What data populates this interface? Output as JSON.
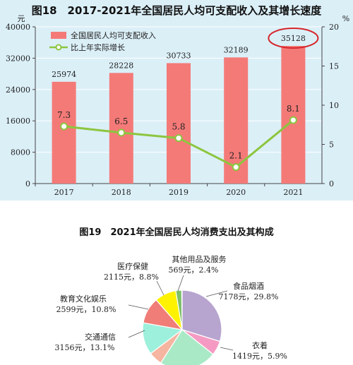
{
  "figures": {
    "fig18_title": "图18　2017-2021年全国居民人均可支配收入及其增长速度",
    "fig19_title": "图19　2021年全国居民人均消费支出及其构成"
  },
  "colors": {
    "panel_bg": "#dbeff7",
    "bar": "#f47a78",
    "line": "#8cc63f",
    "highlight": "#d6262b",
    "grid": "#ffffff"
  },
  "chart_data": [
    {
      "type": "bar",
      "title": "图18　2017-2021年全国居民人均可支配收入及其增长速度",
      "yunit": "元",
      "categories": [
        "2017",
        "2018",
        "2019",
        "2020",
        "2021"
      ],
      "ylim": [
        0,
        40000
      ],
      "yticks": [
        "0",
        "8000",
        "16000",
        "24000",
        "32000",
        "40000"
      ],
      "y2lim": [
        0,
        20
      ],
      "y2ticks": [
        "0",
        "5",
        "10",
        "15",
        "20"
      ],
      "y2unit": "%",
      "legend_position": "top-left",
      "series": [
        {
          "name": "全国居民人均可支配收入",
          "kind": "bar",
          "values": [
            25974,
            28228,
            30733,
            32189,
            35128
          ],
          "labels": [
            "25974",
            "28228",
            "30733",
            "32189",
            "35128"
          ]
        },
        {
          "name": "比上年实际增长",
          "kind": "line",
          "axis": "right",
          "values": [
            7.3,
            6.5,
            5.8,
            2.1,
            8.1
          ],
          "labels": [
            "7.3",
            "6.5",
            "5.8",
            "2.1",
            "8.1"
          ]
        }
      ],
      "highlight_category": "2021"
    },
    {
      "type": "pie",
      "title": "图19　2021年全国居民人均消费支出及其构成",
      "slices": [
        {
          "label": "食品烟酒",
          "detail": "7178元，29.8%",
          "value": 29.8,
          "color": "#b7a4cf"
        },
        {
          "label": "衣着",
          "detail": "1419元，5.9%",
          "value": 5.9,
          "color": "#f59bc3"
        },
        {
          "label": "",
          "detail": "",
          "value": 23.4,
          "color": "#a9e9c6"
        },
        {
          "label": "",
          "detail": "",
          "value": 5.6,
          "color": "#f5b5a0"
        },
        {
          "label": "交通通信",
          "detail": "3156元，13.1%",
          "value": 13.1,
          "color": "#9df0dc"
        },
        {
          "label": "教育文化娱乐",
          "detail": "2599元，10.8%",
          "value": 10.8,
          "color": "#f07d77"
        },
        {
          "label": "医疗保健",
          "detail": "2115元，8.8%",
          "value": 8.8,
          "color": "#fff200"
        },
        {
          "label": "其他用品及服务",
          "detail": "569元，2.4%",
          "value": 2.4,
          "color": "#7dbf6a"
        }
      ]
    }
  ]
}
